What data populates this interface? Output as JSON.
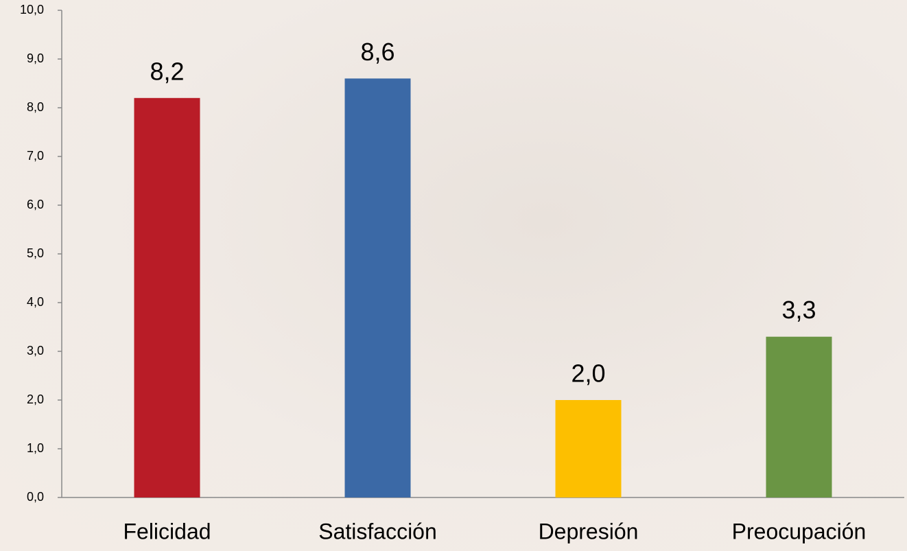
{
  "chart_data": {
    "type": "bar",
    "categories": [
      "Felicidad",
      "Satisfacción",
      "Depresión",
      "Preocupación"
    ],
    "values": [
      8.2,
      8.6,
      2.0,
      3.3
    ],
    "value_labels": [
      "8,2",
      "8,6",
      "2,0",
      "3,3"
    ],
    "colors": [
      "#b91c27",
      "#3b69a6",
      "#fdbf00",
      "#6a9544"
    ],
    "ylim": [
      0,
      10
    ],
    "yticks": [
      {
        "value": 0,
        "label": "0,0"
      },
      {
        "value": 1,
        "label": "1,0"
      },
      {
        "value": 2,
        "label": "2,0"
      },
      {
        "value": 3,
        "label": "3,0"
      },
      {
        "value": 4,
        "label": "4,0"
      },
      {
        "value": 5,
        "label": "5,0"
      },
      {
        "value": 6,
        "label": "6,0"
      },
      {
        "value": 7,
        "label": "7,0"
      },
      {
        "value": 8,
        "label": "8,0"
      },
      {
        "value": 9,
        "label": "9,0"
      },
      {
        "value": 10,
        "label": "10,0"
      }
    ]
  }
}
